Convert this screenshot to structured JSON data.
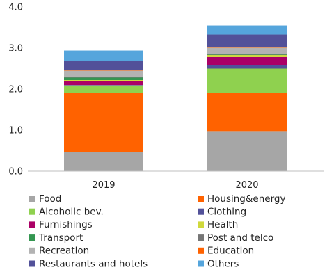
{
  "chart_data": {
    "type": "bar",
    "stacked": true,
    "categories": [
      "2019",
      "2020"
    ],
    "ylim": [
      0,
      4
    ],
    "yticks": [
      "0.0",
      "1.0",
      "2.0",
      "3.0",
      "4.0"
    ],
    "grid": false,
    "legend_position": "bottom",
    "series": [
      {
        "name": "Food",
        "color": "#a6a6a6",
        "values": [
          0.47,
          0.96
        ]
      },
      {
        "name": "Housing&energy",
        "color": "#ff6200",
        "values": [
          1.43,
          0.95
        ]
      },
      {
        "name": "Alcoholic bev.",
        "color": "#8fd14f",
        "values": [
          0.19,
          0.59
        ]
      },
      {
        "name": "Clothing",
        "color": "#525199",
        "values": [
          0.01,
          0.09
        ]
      },
      {
        "name": "Furnishings",
        "color": "#ab0066",
        "values": [
          0.09,
          0.19
        ]
      },
      {
        "name": "Health",
        "color": "#d0d93c",
        "values": [
          0.03,
          0.05
        ]
      },
      {
        "name": "Transport",
        "color": "#349651",
        "values": [
          0.06,
          0.01
        ]
      },
      {
        "name": "Post and telco",
        "color": "#767676",
        "values": [
          0.02,
          0.02
        ]
      },
      {
        "name": "Recreation",
        "color": "#b3b3b3",
        "values": [
          0.15,
          0.15
        ]
      },
      {
        "name": "Education",
        "color": "#ff6200",
        "values": [
          0.01,
          0.02
        ]
      },
      {
        "name": "Restaurants and hotels",
        "color": "#525199",
        "values": [
          0.22,
          0.3
        ]
      },
      {
        "name": "Others",
        "color": "#55a5dc",
        "values": [
          0.26,
          0.22
        ]
      }
    ]
  }
}
